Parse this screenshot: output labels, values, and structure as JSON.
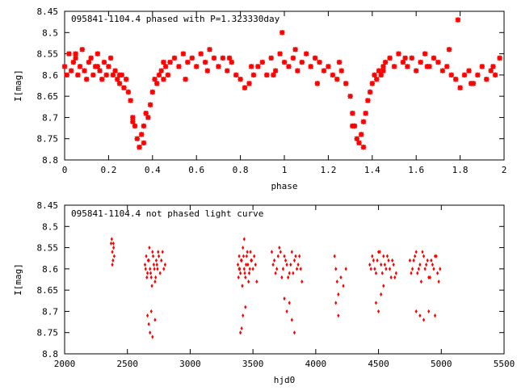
{
  "chart_data": [
    {
      "type": "scatter",
      "title": "095841-1104.4 phased with P=1.323330day",
      "xlabel": "phase",
      "ylabel": "I[mag]",
      "xlim": [
        0,
        2
      ],
      "ylim": [
        8.45,
        8.8
      ],
      "y_inverted": true,
      "xticks": [
        "0",
        "0.2",
        "0.4",
        "0.6",
        "0.8",
        "1",
        "1.2",
        "1.4",
        "1.6",
        "1.8",
        "2"
      ],
      "yticks": [
        "8.45",
        "8.5",
        "8.55",
        "8.6",
        "8.65",
        "8.7",
        "8.75",
        "8.8"
      ],
      "marker": "star",
      "color": "#ff0000",
      "x": [
        0.0,
        0.01,
        0.02,
        0.03,
        0.04,
        0.05,
        0.06,
        0.07,
        0.08,
        0.09,
        0.1,
        0.11,
        0.12,
        0.13,
        0.14,
        0.15,
        0.16,
        0.17,
        0.18,
        0.19,
        0.2,
        0.21,
        0.22,
        0.23,
        0.24,
        0.25,
        0.26,
        0.27,
        0.28,
        0.29,
        0.3,
        0.31,
        0.32,
        0.33,
        0.34,
        0.35,
        0.36,
        0.37,
        0.38,
        0.39,
        0.4,
        0.41,
        0.42,
        0.43,
        0.44,
        0.45,
        0.46,
        0.47,
        0.48,
        0.5,
        0.52,
        0.54,
        0.56,
        0.58,
        0.6,
        0.62,
        0.64,
        0.66,
        0.68,
        0.7,
        0.72,
        0.74,
        0.76,
        0.78,
        0.8,
        0.82,
        0.84,
        0.86,
        0.88,
        0.9,
        0.92,
        0.94,
        0.96,
        0.98,
        1.0,
        1.02,
        1.04,
        1.06,
        1.08,
        1.1,
        1.12,
        1.14,
        1.16,
        1.18,
        1.2,
        1.22,
        1.24,
        1.26,
        1.28,
        1.3,
        1.31,
        1.32,
        1.33,
        1.34,
        1.35,
        1.36,
        1.37,
        1.38,
        1.39,
        1.4,
        1.41,
        1.42,
        1.43,
        1.44,
        1.45,
        1.46,
        1.48,
        1.5,
        1.52,
        1.54,
        1.56,
        1.58,
        1.6,
        1.62,
        1.64,
        1.66,
        1.68,
        1.7,
        1.72,
        1.74,
        1.76,
        1.78,
        1.8,
        1.82,
        1.84,
        1.86,
        1.88,
        1.9,
        1.92,
        1.94,
        1.96,
        1.98,
        0.05,
        0.15,
        0.25,
        0.45,
        0.55,
        0.65,
        0.75,
        0.85,
        0.95,
        1.05,
        1.15,
        1.25,
        1.45,
        1.55,
        1.65,
        1.75,
        1.85,
        1.95,
        0.36,
        1.36,
        0.99,
        1.79,
        0.31,
        1.31
      ],
      "y": [
        8.58,
        8.6,
        8.55,
        8.59,
        8.57,
        8.56,
        8.6,
        8.58,
        8.54,
        8.59,
        8.61,
        8.57,
        8.56,
        8.6,
        8.58,
        8.55,
        8.59,
        8.61,
        8.57,
        8.6,
        8.58,
        8.56,
        8.6,
        8.59,
        8.61,
        8.62,
        8.6,
        8.63,
        8.61,
        8.64,
        8.66,
        8.7,
        8.72,
        8.75,
        8.77,
        8.74,
        8.72,
        8.69,
        8.7,
        8.67,
        8.64,
        8.61,
        8.62,
        8.6,
        8.59,
        8.61,
        8.58,
        8.6,
        8.57,
        8.56,
        8.58,
        8.55,
        8.57,
        8.56,
        8.58,
        8.55,
        8.57,
        8.54,
        8.56,
        8.58,
        8.56,
        8.59,
        8.57,
        8.6,
        8.61,
        8.63,
        8.62,
        8.6,
        8.58,
        8.57,
        8.6,
        8.56,
        8.59,
        8.55,
        8.57,
        8.58,
        8.56,
        8.59,
        8.57,
        8.55,
        8.58,
        8.56,
        8.57,
        8.59,
        8.58,
        8.6,
        8.61,
        8.59,
        8.62,
        8.65,
        8.69,
        8.72,
        8.75,
        8.76,
        8.74,
        8.71,
        8.69,
        8.66,
        8.64,
        8.62,
        8.6,
        8.61,
        8.59,
        8.6,
        8.58,
        8.57,
        8.56,
        8.58,
        8.55,
        8.57,
        8.58,
        8.56,
        8.59,
        8.57,
        8.55,
        8.58,
        8.56,
        8.57,
        8.59,
        8.58,
        8.6,
        8.61,
        8.63,
        8.6,
        8.59,
        8.62,
        8.6,
        8.58,
        8.61,
        8.59,
        8.6,
        8.56,
        8.55,
        8.58,
        8.6,
        8.57,
        8.61,
        8.59,
        8.56,
        8.58,
        8.6,
        8.54,
        8.62,
        8.57,
        8.59,
        8.56,
        8.58,
        8.54,
        8.62,
        8.58,
        8.76,
        8.77,
        8.5,
        8.47,
        8.71,
        8.72
      ]
    },
    {
      "type": "scatter",
      "title": "095841-1104.4 not phased light curve",
      "xlabel": "hjd0",
      "ylabel": "I[mag]",
      "xlim": [
        2000,
        5500
      ],
      "ylim": [
        8.45,
        8.8
      ],
      "y_inverted": true,
      "xticks": [
        "2000",
        "2500",
        "3000",
        "3500",
        "4000",
        "4500",
        "5000",
        "5500"
      ],
      "yticks": [
        "8.45",
        "8.5",
        "8.55",
        "8.6",
        "8.65",
        "8.7",
        "8.75",
        "8.8"
      ],
      "marker": "diamond",
      "color": "#ff0000",
      "x": [
        2370,
        2375,
        2380,
        2385,
        2390,
        2395,
        2380,
        2388,
        2640,
        2650,
        2660,
        2670,
        2680,
        2690,
        2700,
        2710,
        2720,
        2730,
        2740,
        2750,
        2760,
        2770,
        2780,
        2790,
        2800,
        2645,
        2655,
        2665,
        2675,
        2685,
        2695,
        2705,
        2715,
        2725,
        2735,
        2745,
        2660,
        2670,
        2690,
        2700,
        2680,
        2720,
        3380,
        3390,
        3400,
        3410,
        3420,
        3430,
        3440,
        3450,
        3460,
        3470,
        3480,
        3490,
        3500,
        3510,
        3520,
        3530,
        3385,
        3395,
        3405,
        3415,
        3425,
        3435,
        3445,
        3455,
        3465,
        3475,
        3485,
        3400,
        3410,
        3430,
        3440,
        3420,
        3390,
        3650,
        3670,
        3690,
        3710,
        3730,
        3750,
        3770,
        3790,
        3810,
        3830,
        3850,
        3870,
        3890,
        3660,
        3680,
        3700,
        3720,
        3740,
        3760,
        3780,
        3800,
        3820,
        3840,
        3860,
        3880,
        3750,
        3770,
        3790,
        3810,
        3830,
        4150,
        4160,
        4170,
        4180,
        4200,
        4220,
        4240,
        4160,
        4180,
        4430,
        4450,
        4470,
        4490,
        4510,
        4530,
        4550,
        4570,
        4590,
        4610,
        4630,
        4440,
        4460,
        4480,
        4500,
        4520,
        4540,
        4560,
        4580,
        4600,
        4620,
        4640,
        4480,
        4500,
        4520,
        4540,
        4750,
        4770,
        4790,
        4810,
        4830,
        4850,
        4870,
        4890,
        4910,
        4930,
        4950,
        4970,
        4990,
        4760,
        4780,
        4800,
        4820,
        4840,
        4860,
        4880,
        4900,
        4920,
        4940,
        4960,
        4980,
        4800,
        4830,
        4860,
        4900,
        4950
      ],
      "y": [
        8.54,
        8.53,
        8.56,
        8.58,
        8.55,
        8.57,
        8.59,
        8.54,
        8.59,
        8.57,
        8.61,
        8.58,
        8.6,
        8.62,
        8.56,
        8.59,
        8.63,
        8.58,
        8.6,
        8.57,
        8.61,
        8.58,
        8.56,
        8.6,
        8.59,
        8.6,
        8.62,
        8.58,
        8.55,
        8.61,
        8.64,
        8.57,
        8.6,
        8.62,
        8.59,
        8.56,
        8.71,
        8.73,
        8.7,
        8.76,
        8.75,
        8.72,
        8.59,
        8.57,
        8.61,
        8.58,
        8.55,
        8.6,
        8.62,
        8.57,
        8.59,
        8.61,
        8.56,
        8.58,
        8.6,
        8.57,
        8.59,
        8.63,
        8.62,
        8.6,
        8.58,
        8.64,
        8.57,
        8.61,
        8.59,
        8.56,
        8.63,
        8.6,
        8.58,
        8.75,
        8.74,
        8.53,
        8.69,
        8.71,
        8.6,
        8.56,
        8.58,
        8.6,
        8.55,
        8.62,
        8.57,
        8.59,
        8.61,
        8.56,
        8.58,
        8.6,
        8.57,
        8.63,
        8.59,
        8.61,
        8.57,
        8.56,
        8.6,
        8.58,
        8.62,
        8.59,
        8.61,
        8.57,
        8.59,
        8.6,
        8.67,
        8.7,
        8.68,
        8.72,
        8.75,
        8.57,
        8.6,
        8.63,
        8.66,
        8.62,
        8.64,
        8.6,
        8.68,
        8.71,
        8.59,
        8.57,
        8.6,
        8.58,
        8.56,
        8.61,
        8.59,
        8.57,
        8.6,
        8.58,
        8.62,
        8.6,
        8.58,
        8.61,
        8.56,
        8.59,
        8.57,
        8.6,
        8.58,
        8.62,
        8.59,
        8.61,
        8.68,
        8.7,
        8.66,
        8.64,
        8.58,
        8.6,
        8.57,
        8.61,
        8.59,
        8.56,
        8.6,
        8.58,
        8.62,
        8.59,
        8.57,
        8.61,
        8.6,
        8.61,
        8.58,
        8.56,
        8.6,
        8.63,
        8.57,
        8.59,
        8.62,
        8.58,
        8.6,
        8.57,
        8.63,
        8.7,
        8.71,
        8.72,
        8.7,
        8.71
      ]
    }
  ]
}
